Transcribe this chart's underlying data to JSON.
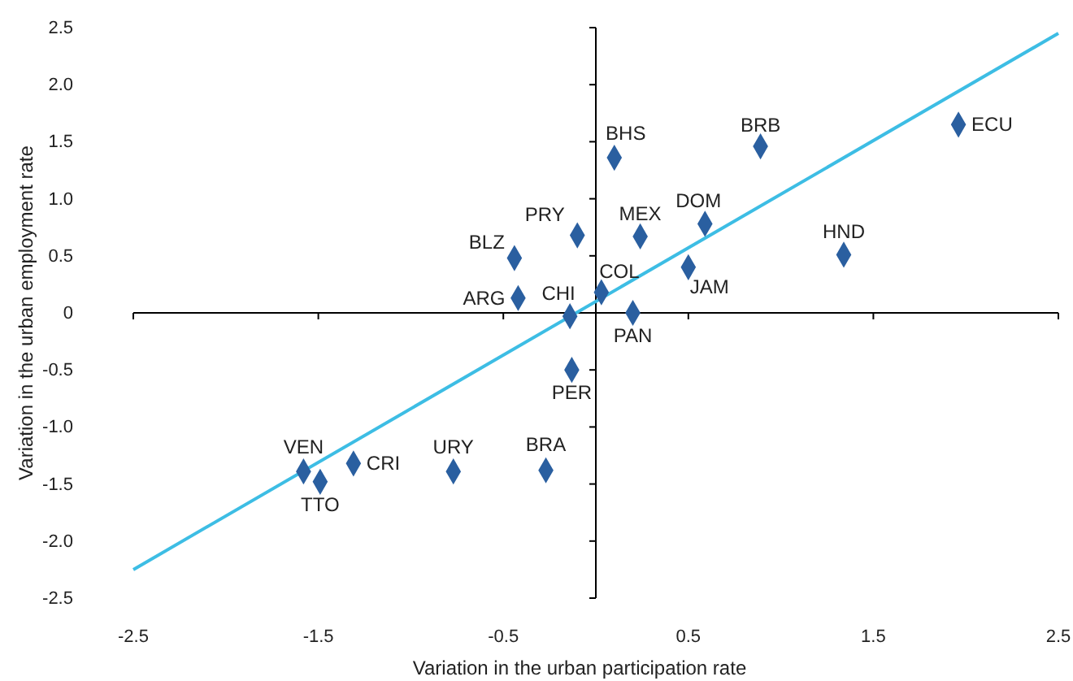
{
  "chart_data": {
    "type": "scatter",
    "xlabel": "Variation in the urban participation rate",
    "ylabel": "Variation in the urban employment rate",
    "xlim": [
      -2.5,
      2.5
    ],
    "ylim": [
      -2.5,
      2.5
    ],
    "xticks": [
      -2.5,
      -1.5,
      -0.5,
      0.5,
      1.5,
      2.5
    ],
    "yticks": [
      2.5,
      {
        "value": 2,
        "label": "2.0"
      },
      1.5,
      {
        "value": 1,
        "label": "1.0"
      },
      0.5,
      0,
      -0.5,
      {
        "value": -1,
        "label": "-1.0"
      },
      -1.5,
      {
        "value": -2,
        "label": "-2.0"
      },
      -2.5
    ],
    "marker": "diamond",
    "series": [
      {
        "color": "#2a5fa0",
        "x": [
          1.96,
          0.89,
          0.1,
          0.59,
          1.34,
          0.24,
          -0.1,
          -0.44,
          0.5,
          0.03,
          -0.42,
          -0.14,
          0.2,
          -0.13,
          -1.58,
          -1.49,
          -1.31,
          -0.77,
          -0.27
        ],
        "values": [
          1.65,
          1.46,
          1.36,
          0.78,
          0.51,
          0.67,
          0.68,
          0.48,
          0.4,
          0.18,
          0.13,
          -0.03,
          0.0,
          -0.5,
          -1.39,
          -1.48,
          -1.32,
          -1.39,
          -1.38
        ]
      },
      {
        "type": "line",
        "marker": "none",
        "color": "#3dbde4",
        "x": [
          -2.5,
          2.5
        ],
        "values": [
          -2.25,
          2.45
        ]
      }
    ],
    "annotations": [
      {
        "text": "ECU",
        "x": 1.96,
        "y": 1.65
      },
      {
        "text": "BRB",
        "x": 0.89,
        "y": 1.46
      },
      {
        "text": "BHS",
        "x": 0.1,
        "y": 1.36
      },
      {
        "text": "DOM",
        "x": 0.59,
        "y": 0.78
      },
      {
        "text": "HND",
        "x": 1.34,
        "y": 0.51
      },
      {
        "text": "MEX",
        "x": 0.24,
        "y": 0.67
      },
      {
        "text": "PRY",
        "x": -0.1,
        "y": 0.68
      },
      {
        "text": "BLZ",
        "x": -0.44,
        "y": 0.48
      },
      {
        "text": "JAM",
        "x": 0.5,
        "y": 0.4
      },
      {
        "text": "COL",
        "x": 0.03,
        "y": 0.18
      },
      {
        "text": "ARG",
        "x": -0.42,
        "y": 0.13
      },
      {
        "text": "CHI",
        "x": -0.14,
        "y": -0.03
      },
      {
        "text": "PAN",
        "x": 0.2,
        "y": 0.0
      },
      {
        "text": "PER",
        "x": -0.13,
        "y": -0.5
      },
      {
        "text": "VEN",
        "x": -1.58,
        "y": -1.39
      },
      {
        "text": "TTO",
        "x": -1.49,
        "y": -1.48
      },
      {
        "text": "CRI",
        "x": -1.31,
        "y": -1.32
      },
      {
        "text": "URY",
        "x": -0.77,
        "y": -1.39
      },
      {
        "text": "BRA",
        "x": -0.27,
        "y": -1.38
      }
    ]
  }
}
